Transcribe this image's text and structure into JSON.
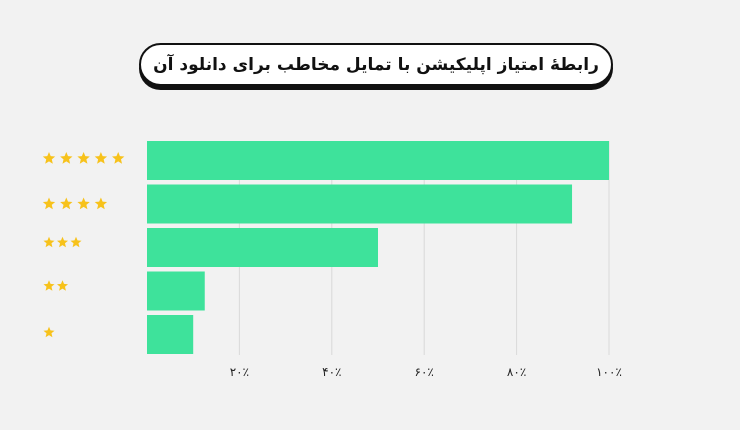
{
  "title": "رابطهٔ امتیاز اپلیکیشن با تمایل مخاطب برای دانلود آن",
  "colors": {
    "bar": "#3ee29b",
    "star": "#f7c21b",
    "grid": "#d9d9d9",
    "background": "#f2f2f2"
  },
  "chart_data": {
    "type": "bar",
    "orientation": "horizontal",
    "title": "رابطهٔ امتیاز اپلیکیشن با تمایل مخاطب برای دانلود آن",
    "categories": [
      5,
      4,
      3,
      2,
      1
    ],
    "category_labels_icon": "star-icon",
    "values": [
      100,
      92,
      50,
      12.5,
      10
    ],
    "xlim": [
      0,
      100
    ],
    "xticks": [
      {
        "value": 20,
        "label": "۲۰٪"
      },
      {
        "value": 40,
        "label": "۴۰٪"
      },
      {
        "value": 60,
        "label": "۶۰٪"
      },
      {
        "value": 80,
        "label": "۸۰٪"
      },
      {
        "value": 100,
        "label": "۱۰۰٪"
      }
    ],
    "grid": "vertical",
    "legend": "none"
  }
}
